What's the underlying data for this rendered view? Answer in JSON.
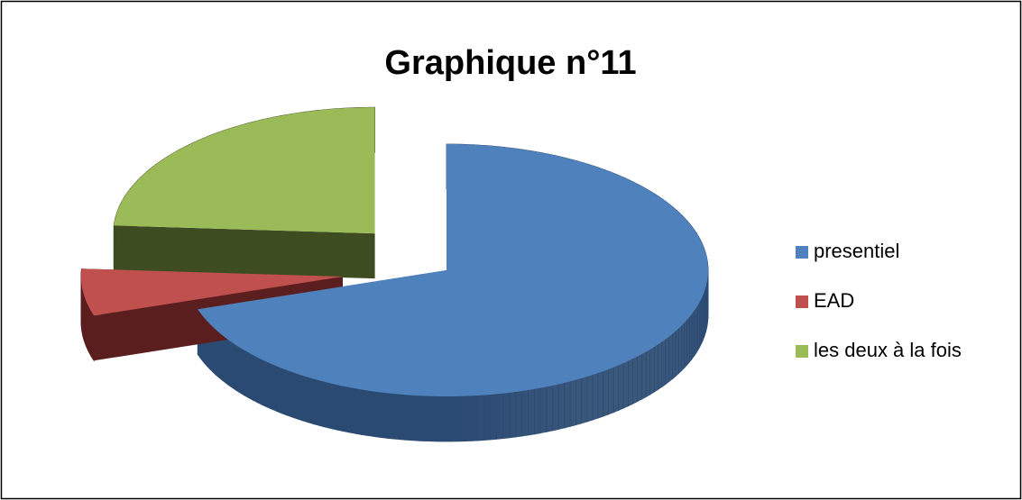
{
  "chart_data": {
    "type": "pie",
    "title": "Graphique  n°11",
    "categories": [
      "presentiel",
      "EAD",
      "les deux à la fois"
    ],
    "values": [
      70,
      6,
      24
    ],
    "colors": [
      "#4f81bd",
      "#c0504d",
      "#9bbb59"
    ],
    "side_colors": [
      "#2b4a72",
      "#5a1e1e",
      "#3e4c22"
    ],
    "legend": "right",
    "three_d": true
  }
}
